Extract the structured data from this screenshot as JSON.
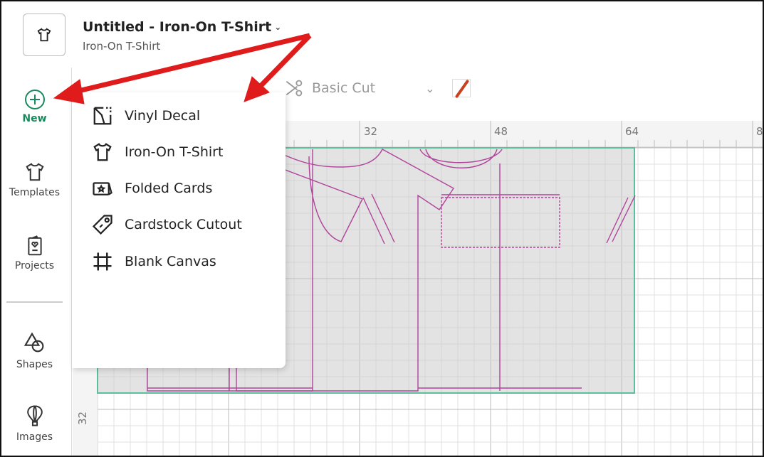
{
  "header": {
    "title": "Untitled - Iron-On T-Shirt",
    "subtitle": "Iron-On T-Shirt",
    "project_icon": "tshirt-icon"
  },
  "sidebar": {
    "items": [
      {
        "label": "New",
        "icon": "plus-circle-icon",
        "active": true
      },
      {
        "label": "Templates",
        "icon": "tshirt-icon"
      },
      {
        "label": "Projects",
        "icon": "card-heart-icon"
      },
      {
        "label": "Shapes",
        "icon": "shapes-icon"
      },
      {
        "label": "Images",
        "icon": "hot-air-balloon-icon"
      }
    ]
  },
  "toolbar": {
    "operation": "Basic Cut",
    "operation_icon": "scissors-icon",
    "color_swatch": "#c8401e"
  },
  "new_menu": {
    "items": [
      {
        "label": "Vinyl Decal",
        "icon": "vinyl-decal-icon"
      },
      {
        "label": "Iron-On T-Shirt",
        "icon": "tshirt-icon"
      },
      {
        "label": "Folded Cards",
        "icon": "folded-card-icon"
      },
      {
        "label": "Cardstock Cutout",
        "icon": "tag-icon"
      },
      {
        "label": "Blank Canvas",
        "icon": "canvas-crop-icon"
      }
    ]
  },
  "ruler": {
    "top": [
      "32",
      "48",
      "64",
      "8"
    ],
    "left": [
      "32"
    ]
  },
  "colors": {
    "accent": "#1a8a5e",
    "mat_border": "#5bbf9c",
    "design": "#b0449a",
    "annotation_arrows": "#e01b1b"
  }
}
